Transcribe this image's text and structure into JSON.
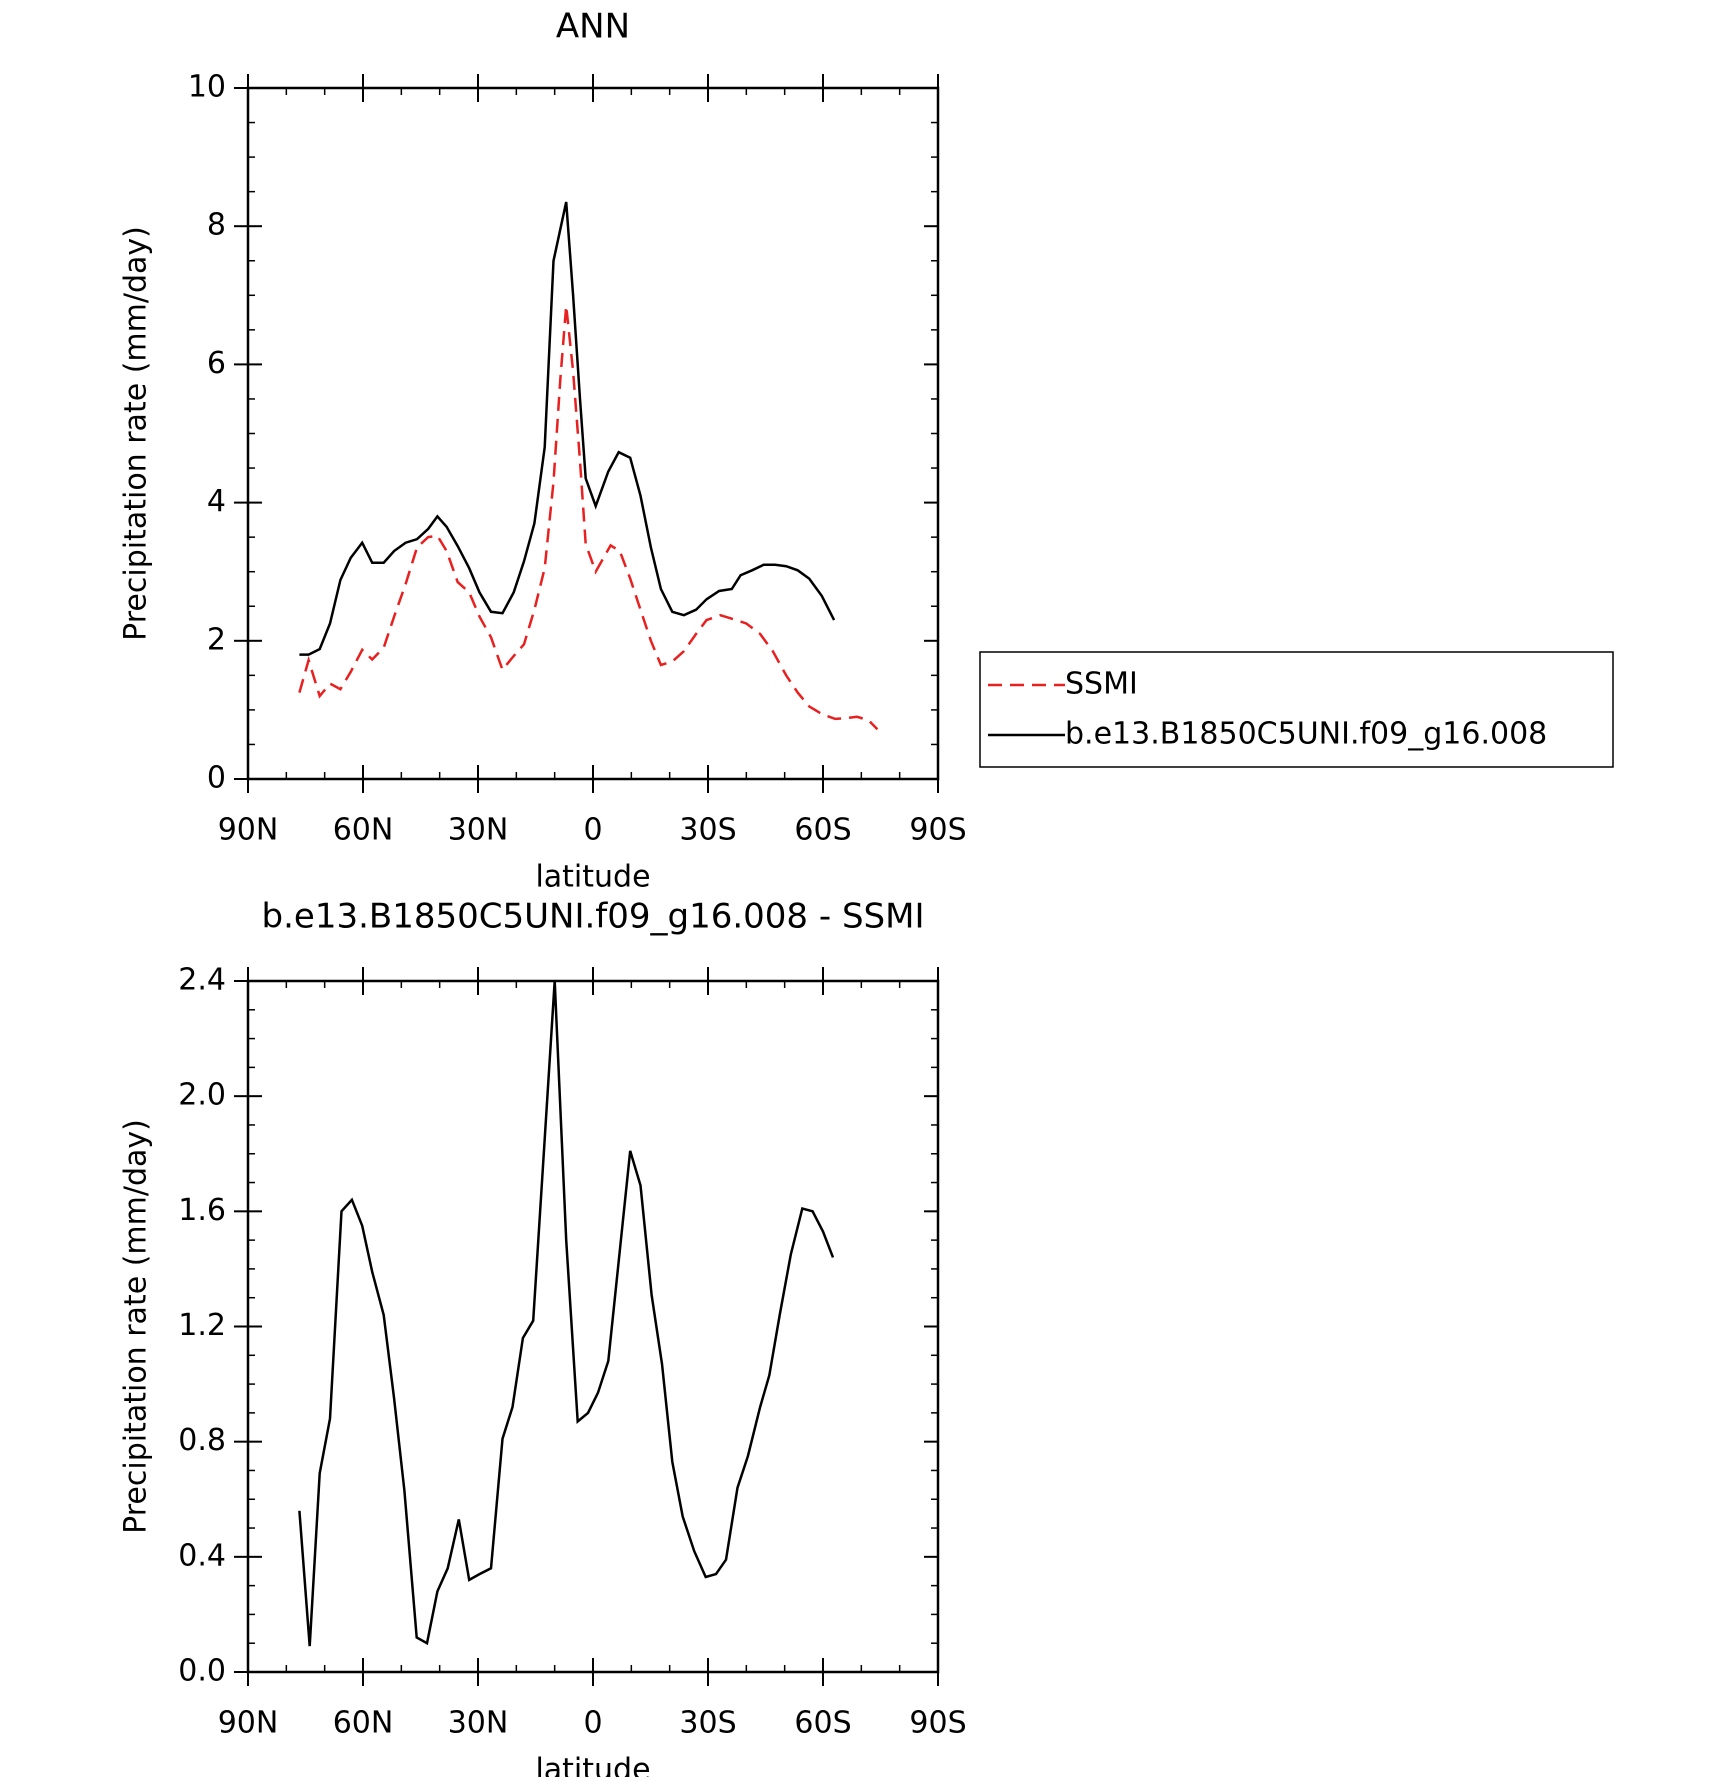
{
  "chart_data": [
    {
      "type": "line",
      "title": "ANN",
      "x_label": "latitude",
      "y_label": "Precipitation rate (mm/day)",
      "xlim": [
        90,
        -90
      ],
      "xticks": [
        {
          "value": 90,
          "label": "90N"
        },
        {
          "value": 60,
          "label": "60N"
        },
        {
          "value": 30,
          "label": "30N"
        },
        0,
        {
          "value": -30,
          "label": "30S"
        },
        {
          "value": -60,
          "label": "60S"
        },
        {
          "value": -90,
          "label": "90S"
        }
      ],
      "ylim": [
        0,
        10
      ],
      "yticks": [
        0,
        2,
        4,
        6,
        8,
        10
      ],
      "legend_position": "right",
      "series": [
        {
          "name": "SSMI",
          "color": "#e8201f",
          "dashed": true,
          "x": [
            76.6,
            74.2,
            71.3,
            68.6,
            65.9,
            63.2,
            60.2,
            57.6,
            54.6,
            51.9,
            48.9,
            45.9,
            43.0,
            40.6,
            38.2,
            35.3,
            32.3,
            29.6,
            26.6,
            23.6,
            20.7,
            18.0,
            15.3,
            12.6,
            10.3,
            8.5,
            7.0,
            5.2,
            3.4,
            1.9,
            -0.7,
            -4.6,
            -7.0,
            -9.7,
            -12.4,
            -15.1,
            -17.7,
            -20.7,
            -23.7,
            -26.9,
            -29.6,
            -33.2,
            -36.2,
            -40.0,
            -43.6,
            -46.9,
            -50.4,
            -53.4,
            -56.4,
            -60.0,
            -63.2,
            -65.9,
            -68.9,
            -71.9,
            -74.2
          ],
          "values": [
            1.25,
            1.72,
            1.2,
            1.38,
            1.3,
            1.55,
            1.87,
            1.73,
            1.9,
            2.35,
            2.82,
            3.35,
            3.5,
            3.52,
            3.3,
            2.85,
            2.7,
            2.35,
            2.05,
            1.58,
            1.78,
            1.95,
            2.45,
            3.05,
            4.3,
            5.8,
            6.85,
            5.9,
            4.6,
            3.4,
            3.0,
            3.38,
            3.3,
            2.9,
            2.45,
            2.0,
            1.65,
            1.7,
            1.85,
            2.1,
            2.3,
            2.37,
            2.32,
            2.25,
            2.1,
            1.85,
            1.5,
            1.25,
            1.05,
            0.93,
            0.87,
            0.88,
            0.9,
            0.85,
            0.72
          ]
        },
        {
          "name": "b.e13.B1850C5UNI.f09_g16.008",
          "color": "#000000",
          "dashed": false,
          "x": [
            76.6,
            74.2,
            71.3,
            68.6,
            65.9,
            63.2,
            60.2,
            57.6,
            54.6,
            51.9,
            48.9,
            45.9,
            43.0,
            40.6,
            38.2,
            35.3,
            32.3,
            29.6,
            26.6,
            23.6,
            20.7,
            18.0,
            15.3,
            12.6,
            10.3,
            7.0,
            5.2,
            3.4,
            1.9,
            -0.7,
            -4.0,
            -6.7,
            -9.7,
            -12.4,
            -15.1,
            -17.7,
            -20.7,
            -23.7,
            -26.9,
            -29.6,
            -32.9,
            -36.2,
            -38.5,
            -41.5,
            -44.5,
            -47.5,
            -50.4,
            -53.4,
            -56.4,
            -59.7,
            -62.9
          ],
          "values": [
            1.8,
            1.8,
            1.88,
            2.25,
            2.88,
            3.2,
            3.42,
            3.13,
            3.13,
            3.3,
            3.42,
            3.47,
            3.62,
            3.8,
            3.65,
            3.37,
            3.05,
            2.7,
            2.42,
            2.4,
            2.7,
            3.15,
            3.7,
            4.8,
            7.5,
            8.35,
            7.0,
            5.5,
            4.35,
            3.95,
            4.45,
            4.73,
            4.65,
            4.1,
            3.35,
            2.75,
            2.42,
            2.37,
            2.45,
            2.6,
            2.72,
            2.75,
            2.95,
            3.02,
            3.1,
            3.1,
            3.08,
            3.02,
            2.9,
            2.65,
            2.3
          ]
        }
      ]
    },
    {
      "type": "line",
      "title": "b.e13.B1850C5UNI.f09_g16.008 - SSMI",
      "x_label": "latitude",
      "y_label": "Precipitation rate (mm/day)",
      "xlim": [
        90,
        -90
      ],
      "xticks": [
        {
          "value": 90,
          "label": "90N"
        },
        {
          "value": 60,
          "label": "60N"
        },
        {
          "value": 30,
          "label": "30N"
        },
        0,
        {
          "value": -30,
          "label": "30S"
        },
        {
          "value": -60,
          "label": "60S"
        },
        {
          "value": -90,
          "label": "90S"
        }
      ],
      "ylim": [
        0,
        2.4
      ],
      "yticks": [
        {
          "value": 0,
          "label": "0.0"
        },
        0.4,
        0.8,
        1.2,
        1.6,
        {
          "value": 2,
          "label": "2.0"
        },
        2.4
      ],
      "series": [
        {
          "color": "#000000",
          "dashed": false,
          "x": [
            76.6,
            73.9,
            71.3,
            68.6,
            65.6,
            62.9,
            60.2,
            57.6,
            54.6,
            51.9,
            49.2,
            46.0,
            43.3,
            40.6,
            37.9,
            35.0,
            32.3,
            29.6,
            26.6,
            23.6,
            21.0,
            18.3,
            15.6,
            10.0,
            7.0,
            4.0,
            1.3,
            -1.3,
            -4.0,
            -9.7,
            -12.4,
            -15.3,
            -18.0,
            -20.7,
            -23.4,
            -26.4,
            -29.4,
            -32.1,
            -34.7,
            -37.7,
            -40.4,
            -43.6,
            -46.0,
            -48.7,
            -51.6,
            -54.6,
            -57.3,
            -60.0,
            -62.6
          ],
          "values": [
            0.56,
            0.09,
            0.69,
            0.88,
            1.6,
            1.64,
            1.55,
            1.39,
            1.24,
            0.95,
            0.63,
            0.12,
            0.1,
            0.28,
            0.36,
            0.53,
            0.32,
            0.34,
            0.36,
            0.81,
            0.92,
            1.16,
            1.22,
            2.4,
            1.5,
            0.87,
            0.9,
            0.97,
            1.08,
            1.81,
            1.69,
            1.31,
            1.07,
            0.73,
            0.54,
            0.42,
            0.33,
            0.34,
            0.39,
            0.64,
            0.75,
            0.92,
            1.03,
            1.24,
            1.45,
            1.61,
            1.6,
            1.53,
            1.44
          ]
        }
      ]
    }
  ]
}
